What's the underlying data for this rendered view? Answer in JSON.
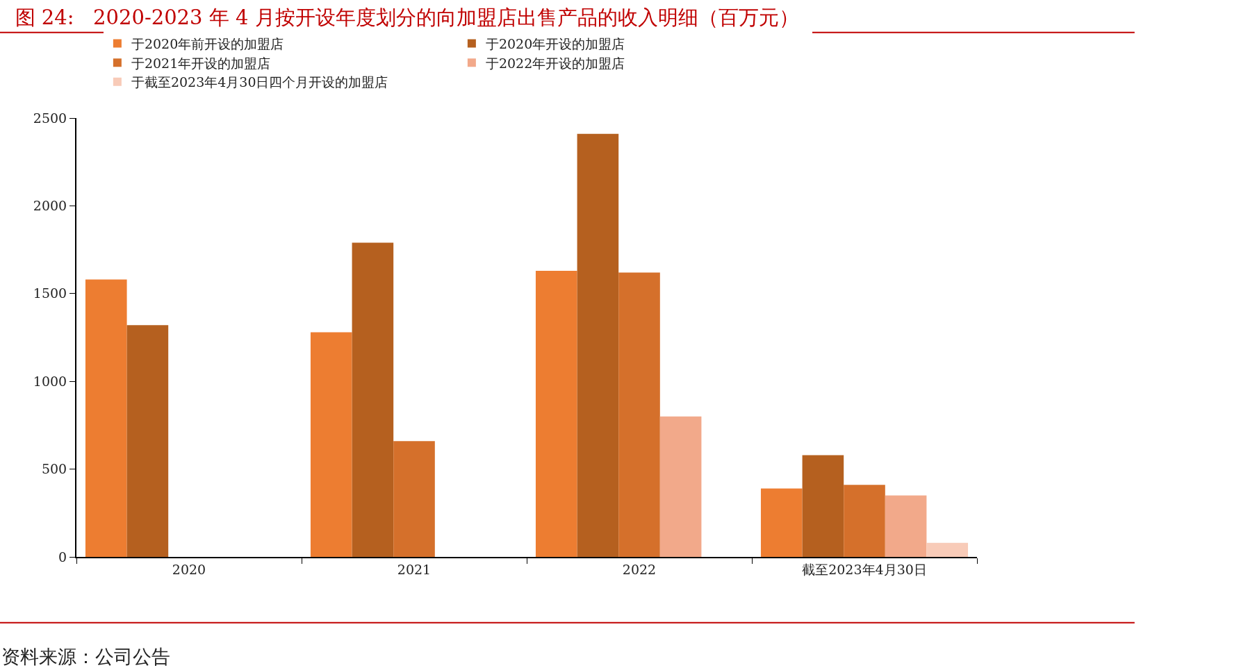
{
  "chart_data": {
    "type": "bar",
    "title": "图 24:   2020-2023 年 4 月按开设年度划分的向加盟店出售产品的收入明细（百万元）",
    "categories": [
      "2020",
      "2021",
      "2022",
      "截至2023年4月30日"
    ],
    "series": [
      {
        "name": "于2020年前开设的加盟店",
        "color": "#ed7d31",
        "values": [
          1580,
          1280,
          1630,
          390
        ]
      },
      {
        "name": "于2020年开设的加盟店",
        "color": "#b5601f",
        "values": [
          1320,
          1790,
          2410,
          580
        ]
      },
      {
        "name": "于2021年开设的加盟店",
        "color": "#d5702b",
        "values": [
          null,
          660,
          1620,
          410
        ]
      },
      {
        "name": "于2022年开设的加盟店",
        "color": "#f2a98a",
        "values": [
          null,
          null,
          800,
          350
        ]
      },
      {
        "name": "于截至2023年4月30日四个月开设的加盟店",
        "color": "#f8cbb8",
        "values": [
          null,
          null,
          null,
          80
        ]
      }
    ],
    "ylim": [
      0,
      2500
    ],
    "yticks": [
      0,
      500,
      1000,
      1500,
      2000,
      2500
    ],
    "grid": false,
    "legend": "top left",
    "annotations": [
      "资料来源：公司公告"
    ]
  }
}
